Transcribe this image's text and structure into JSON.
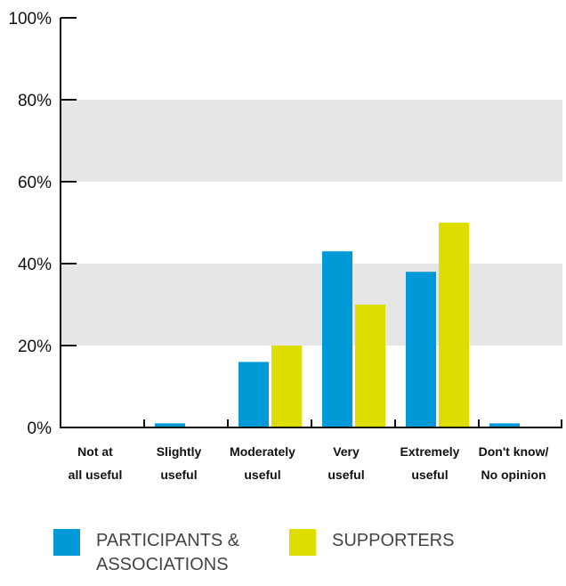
{
  "chart_data": {
    "type": "bar",
    "categories": [
      {
        "line1": "Not at",
        "line2": "all useful"
      },
      {
        "line1": "Slightly",
        "line2": "useful"
      },
      {
        "line1": "Moderately",
        "line2": "useful"
      },
      {
        "line1": "Very",
        "line2": "useful"
      },
      {
        "line1": "Extremely",
        "line2": "useful"
      },
      {
        "line1": "Don't know/",
        "line2": "No opinion"
      }
    ],
    "series": [
      {
        "name": "PARTICIPANTS & ASSOCIATIONS",
        "values": [
          0,
          1,
          16,
          43,
          38,
          1
        ],
        "color": "#0099d8"
      },
      {
        "name": "SUPPORTERS",
        "values": [
          0,
          0,
          20,
          30,
          50,
          0
        ],
        "color": "#dddd00"
      }
    ],
    "ylim": [
      0,
      100
    ],
    "y_ticks": [
      "0%",
      "20%",
      "40%",
      "60%",
      "80%",
      "100%"
    ],
    "grid": "alternating shaded bands",
    "band_color": "#e6e6e6",
    "legend_position": "bottom"
  },
  "legend": {
    "items": [
      {
        "label": "PARTICIPANTS &\nASSOCIATIONS"
      },
      {
        "label": "SUPPORTERS"
      }
    ]
  }
}
